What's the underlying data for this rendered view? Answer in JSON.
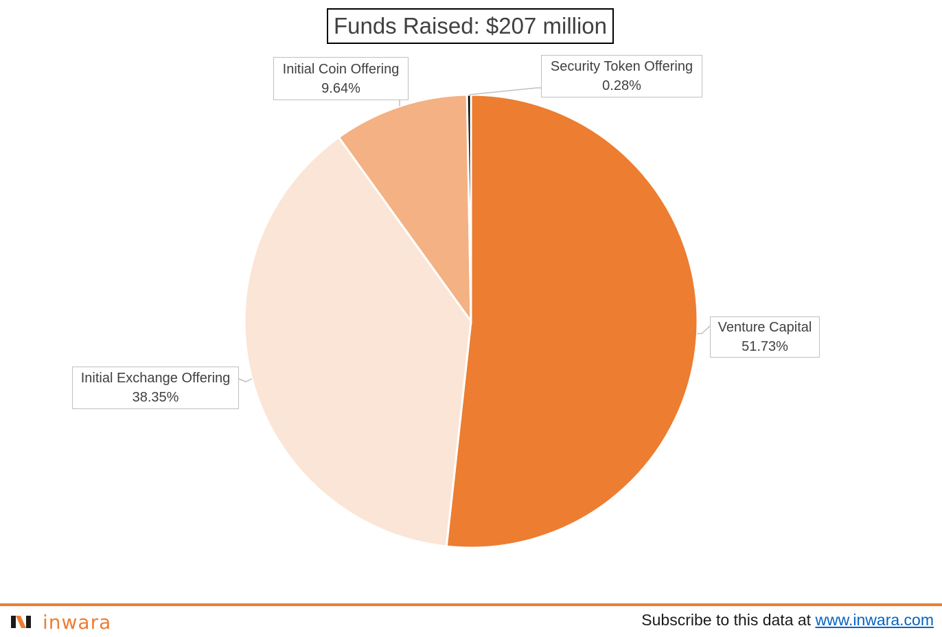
{
  "chart_data": {
    "type": "pie",
    "title": "Funds Raised: $207 million",
    "slices": [
      {
        "name": "Venture Capital",
        "value": 51.73,
        "label": "51.73%",
        "color": "#ed7d31"
      },
      {
        "name": "Initial Exchange Offering",
        "value": 38.35,
        "label": "38.35%",
        "color": "#fbe5d6"
      },
      {
        "name": "Initial Coin Offering",
        "value": 9.64,
        "label": "9.64%",
        "color": "#f4b183"
      },
      {
        "name": "Security Token Offering",
        "value": 0.28,
        "label": "0.28%",
        "color": "#000000"
      }
    ],
    "start": "12 o'clock",
    "direction": "clockwise",
    "legend": "none",
    "data_labels": "callouts"
  },
  "footer": {
    "brand": "inwara",
    "subscribe_text": "Subscribe to this data at ",
    "subscribe_link": "www.inwara.com",
    "accent_color": "#ed7d31"
  }
}
